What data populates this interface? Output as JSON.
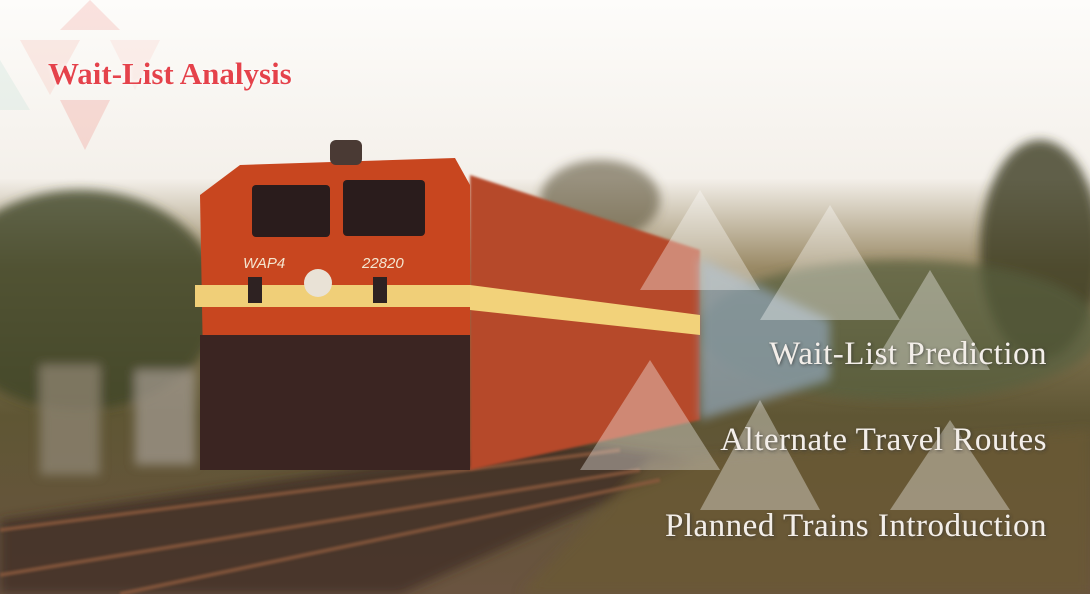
{
  "header": {
    "title": "Wait-List Analysis"
  },
  "menu": {
    "items": [
      "Wait-List Prediction",
      "Alternate Travel Routes",
      "Planned Trains Introduction"
    ]
  },
  "hero_image": {
    "locomotive_model": "WAP4",
    "locomotive_number": "22820"
  }
}
